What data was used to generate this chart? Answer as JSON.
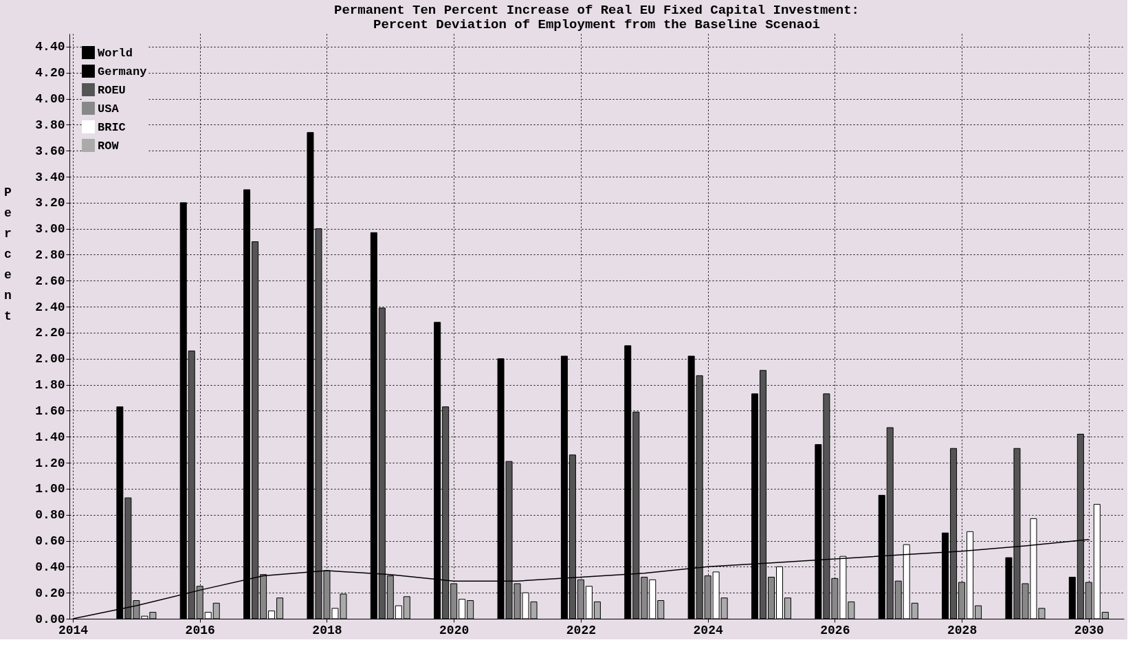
{
  "chart_data": {
    "type": "bar",
    "title": "Permanent Ten Percent Increase of Real EU Fixed Capital Investment:\nPercent Deviation of Employment from the Baseline Scenaoi",
    "ylabel": "Percent",
    "x": [
      2015,
      2016,
      2017,
      2018,
      2019,
      2020,
      2021,
      2022,
      2023,
      2024,
      2025,
      2026,
      2027,
      2028,
      2029,
      2030
    ],
    "series": [
      {
        "name": "World",
        "type": "line",
        "color": "#000000",
        "x": [
          2014,
          2015,
          2016,
          2017,
          2018,
          2019,
          2020,
          2021,
          2022,
          2023,
          2024,
          2025,
          2026,
          2027,
          2028,
          2029,
          2030
        ],
        "values": [
          0.0,
          0.1,
          0.22,
          0.33,
          0.37,
          0.34,
          0.29,
          0.29,
          0.32,
          0.35,
          0.4,
          0.43,
          0.46,
          0.49,
          0.52,
          0.56,
          0.61
        ]
      },
      {
        "name": "Germany",
        "color": "#000000",
        "values": [
          1.63,
          3.2,
          3.3,
          3.74,
          2.97,
          2.28,
          2.0,
          2.02,
          2.1,
          2.02,
          1.73,
          1.34,
          0.95,
          0.66,
          0.47,
          0.32
        ]
      },
      {
        "name": "ROEU",
        "color": "#555555",
        "values": [
          0.93,
          2.06,
          2.9,
          3.0,
          2.39,
          1.63,
          1.21,
          1.26,
          1.59,
          1.87,
          1.91,
          1.73,
          1.47,
          1.31,
          1.31,
          1.42
        ]
      },
      {
        "name": "USA",
        "color": "#888888",
        "values": [
          0.14,
          0.25,
          0.34,
          0.37,
          0.33,
          0.27,
          0.27,
          0.3,
          0.32,
          0.33,
          0.32,
          0.31,
          0.29,
          0.28,
          0.27,
          0.28
        ]
      },
      {
        "name": "BRIC",
        "color": "#ffffff",
        "values": [
          0.02,
          0.05,
          0.06,
          0.08,
          0.1,
          0.15,
          0.2,
          0.25,
          0.3,
          0.36,
          0.4,
          0.48,
          0.57,
          0.67,
          0.77,
          0.88
        ]
      },
      {
        "name": "ROW",
        "color": "#aaaaaa",
        "values": [
          0.05,
          0.12,
          0.16,
          0.19,
          0.17,
          0.14,
          0.13,
          0.13,
          0.14,
          0.16,
          0.16,
          0.13,
          0.12,
          0.1,
          0.08,
          0.05
        ]
      }
    ],
    "xlim": [
      2014,
      2030.5
    ],
    "xticks": [
      2014,
      2016,
      2018,
      2020,
      2022,
      2024,
      2026,
      2028,
      2030
    ],
    "ylim": [
      0,
      4.5
    ],
    "yticks": [
      {
        "value": 0,
        "label": "0.00"
      },
      {
        "value": 0.2,
        "label": "0.20"
      },
      {
        "value": 0.4,
        "label": "0.40"
      },
      {
        "value": 0.6,
        "label": "0.60"
      },
      {
        "value": 0.8,
        "label": "0.80"
      },
      {
        "value": 1.0,
        "label": "1.00"
      },
      {
        "value": 1.2,
        "label": "1.20"
      },
      {
        "value": 1.4,
        "label": "1.40"
      },
      {
        "value": 1.6,
        "label": "1.60"
      },
      {
        "value": 1.8,
        "label": "1.80"
      },
      {
        "value": 2.0,
        "label": "2.00"
      },
      {
        "value": 2.2,
        "label": "2.20"
      },
      {
        "value": 2.4,
        "label": "2.40"
      },
      {
        "value": 2.6,
        "label": "2.60"
      },
      {
        "value": 2.8,
        "label": "2.80"
      },
      {
        "value": 3.0,
        "label": "3.00"
      },
      {
        "value": 3.2,
        "label": "3.20"
      },
      {
        "value": 3.4,
        "label": "3.40"
      },
      {
        "value": 3.6,
        "label": "3.60"
      },
      {
        "value": 3.8,
        "label": "3.80"
      },
      {
        "value": 4.0,
        "label": "4.00"
      },
      {
        "value": 4.2,
        "label": "4.20"
      },
      {
        "value": 4.4,
        "label": "4.40"
      }
    ],
    "grid": true,
    "legend": "top left"
  }
}
